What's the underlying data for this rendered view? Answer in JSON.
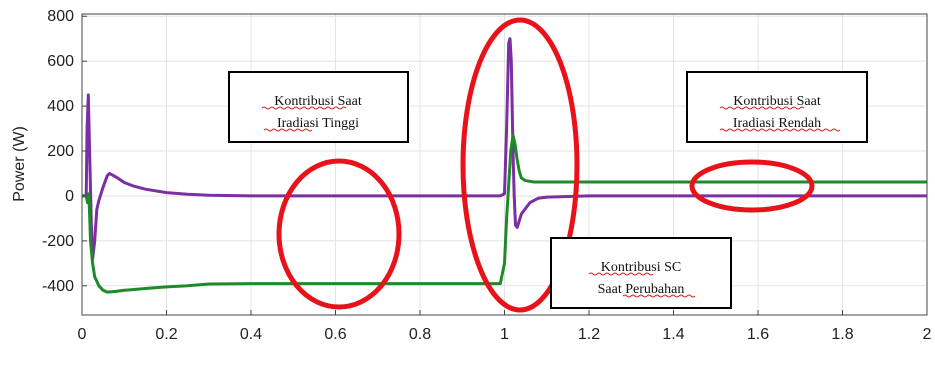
{
  "chart_data": {
    "type": "line",
    "title": "",
    "xlabel": "",
    "ylabel": "Power (W)",
    "xlim": [
      0,
      2
    ],
    "ylim": [
      -530,
      810
    ],
    "x_ticks": [
      "0",
      "0.2",
      "0.4",
      "0.6",
      "0.8",
      "1",
      "1.2",
      "1.4",
      "1.6",
      "1.8",
      "2"
    ],
    "x_tick_values": [
      0,
      0.2,
      0.4,
      0.6,
      0.8,
      1.0,
      1.2,
      1.4,
      1.6,
      1.8,
      2.0
    ],
    "y_ticks": [
      "800",
      "600",
      "400",
      "200",
      "0",
      "-200",
      "-400"
    ],
    "y_tick_values": [
      800,
      600,
      400,
      200,
      0,
      -200,
      -400
    ],
    "grid": true,
    "series": [
      {
        "color": "#7b2fa0",
        "points": [
          [
            0.0,
            0
          ],
          [
            0.01,
            0
          ],
          [
            0.012,
            300
          ],
          [
            0.015,
            450
          ],
          [
            0.018,
            200
          ],
          [
            0.022,
            -120
          ],
          [
            0.025,
            -280
          ],
          [
            0.03,
            -200
          ],
          [
            0.035,
            -60
          ],
          [
            0.04,
            -20
          ],
          [
            0.045,
            10
          ],
          [
            0.05,
            40
          ],
          [
            0.06,
            90
          ],
          [
            0.065,
            100
          ],
          [
            0.07,
            95
          ],
          [
            0.08,
            85
          ],
          [
            0.1,
            60
          ],
          [
            0.12,
            45
          ],
          [
            0.15,
            30
          ],
          [
            0.2,
            15
          ],
          [
            0.25,
            8
          ],
          [
            0.3,
            3
          ],
          [
            0.4,
            0
          ],
          [
            0.6,
            0
          ],
          [
            0.8,
            0
          ],
          [
            0.99,
            0
          ],
          [
            1.0,
            10
          ],
          [
            1.005,
            300
          ],
          [
            1.01,
            680
          ],
          [
            1.013,
            700
          ],
          [
            1.016,
            600
          ],
          [
            1.02,
            200
          ],
          [
            1.023,
            0
          ],
          [
            1.026,
            -130
          ],
          [
            1.03,
            -140
          ],
          [
            1.04,
            -80
          ],
          [
            1.06,
            -30
          ],
          [
            1.08,
            -10
          ],
          [
            1.1,
            -5
          ],
          [
            1.2,
            0
          ],
          [
            1.4,
            0
          ],
          [
            1.6,
            0
          ],
          [
            1.8,
            0
          ],
          [
            2.0,
            0
          ]
        ]
      },
      {
        "color": "#1f8a2a",
        "points": [
          [
            0.0,
            0
          ],
          [
            0.01,
            0
          ],
          [
            0.013,
            -30
          ],
          [
            0.016,
            10
          ],
          [
            0.018,
            -80
          ],
          [
            0.02,
            -200
          ],
          [
            0.025,
            -300
          ],
          [
            0.03,
            -360
          ],
          [
            0.04,
            -400
          ],
          [
            0.05,
            -420
          ],
          [
            0.06,
            -428
          ],
          [
            0.08,
            -425
          ],
          [
            0.1,
            -420
          ],
          [
            0.15,
            -412
          ],
          [
            0.2,
            -405
          ],
          [
            0.25,
            -400
          ],
          [
            0.3,
            -392
          ],
          [
            0.4,
            -390
          ],
          [
            0.6,
            -390
          ],
          [
            0.8,
            -390
          ],
          [
            0.99,
            -390
          ],
          [
            1.0,
            -300
          ],
          [
            1.005,
            -100
          ],
          [
            1.01,
            50
          ],
          [
            1.015,
            200
          ],
          [
            1.02,
            270
          ],
          [
            1.025,
            230
          ],
          [
            1.03,
            160
          ],
          [
            1.035,
            110
          ],
          [
            1.04,
            80
          ],
          [
            1.05,
            68
          ],
          [
            1.07,
            62
          ],
          [
            1.1,
            62
          ],
          [
            1.3,
            62
          ],
          [
            1.5,
            62
          ],
          [
            1.7,
            62
          ],
          [
            2.0,
            62
          ]
        ]
      }
    ],
    "annotations": [
      {
        "lines": [
          "Kontribusi Saat",
          "Iradiasi Tinggi"
        ]
      },
      {
        "lines": [
          "Kontribusi Saat",
          "Iradiasi Rendah"
        ]
      },
      {
        "lines": [
          "Kontribusi SC",
          "Saat Perubahan"
        ]
      }
    ],
    "highlight_color": "#e8121a"
  }
}
